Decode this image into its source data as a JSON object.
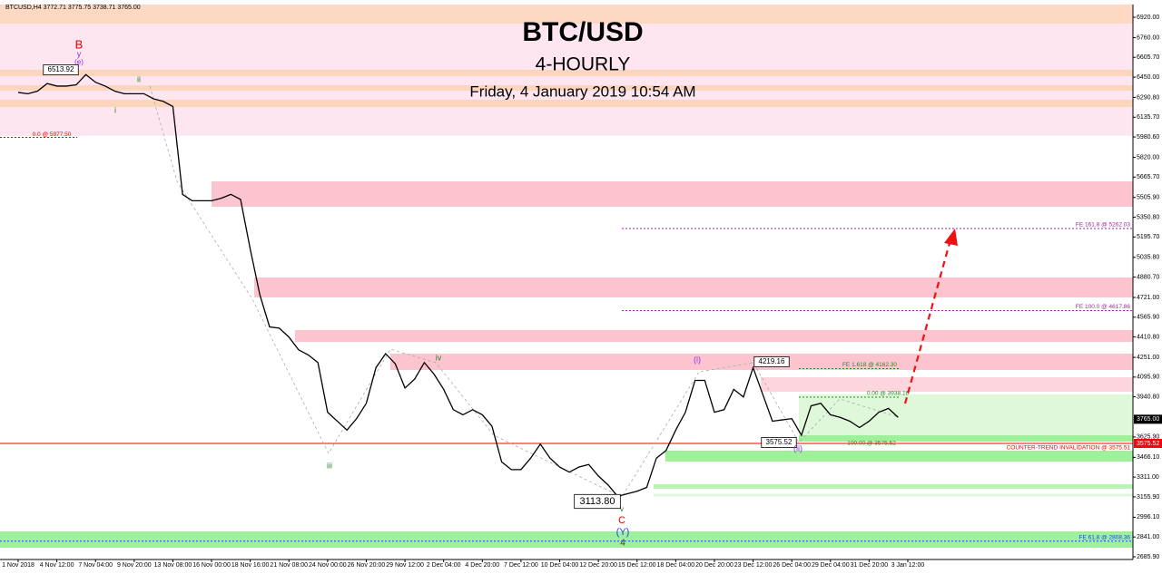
{
  "chart_data": {
    "type": "line",
    "header": "BTCUSD,H4  3772.71 3775.75 3738.71 3765.00",
    "title": "BTC/USD",
    "subtitle": "4-HOURLY",
    "date": "Friday, 4 January 2019 10:54 AM",
    "categories": [
      "1 Nov 2018",
      null,
      null,
      null,
      "4 Nov 12:00",
      null,
      null,
      null,
      "7 Nov 04:00",
      null,
      null,
      null,
      "9 Nov 20:00",
      null,
      null,
      null,
      "13 Nov 08:00",
      null,
      null,
      null,
      "16 Nov 00:00",
      null,
      null,
      null,
      "18 Nov 16:00",
      null,
      null,
      null,
      "21 Nov 08:00",
      null,
      null,
      null,
      "24 Nov 00:00",
      null,
      null,
      null,
      "26 Nov 20:00",
      null,
      null,
      null,
      "29 Nov 12:00",
      null,
      null,
      null,
      "2 Dec 04:00",
      null,
      null,
      null,
      "4 Dec 20:00",
      null,
      null,
      null,
      "7 Dec 12:00",
      null,
      null,
      null,
      "10 Dec 04:00",
      null,
      null,
      null,
      "12 Dec 20:00",
      null,
      null,
      null,
      "15 Dec 12:00",
      null,
      null,
      null,
      "18 Dec 04:00",
      null,
      null,
      null,
      "20 Dec 20:00",
      null,
      null,
      null,
      "23 Dec 12:00",
      null,
      null,
      null,
      "26 Dec 04:00",
      null,
      null,
      null,
      "29 Dec 04:00",
      null,
      null,
      null,
      "31 Dec 20:00",
      null,
      null,
      null,
      "3 Jan 12:00"
    ],
    "series": [
      {
        "color": "#000000",
        "values": [
          6330,
          6320,
          6340,
          6400,
          6380,
          6380,
          6390,
          6470,
          6410,
          6380,
          6340,
          6320,
          6320,
          6320,
          6280,
          6260,
          6220,
          5530,
          5480,
          5480,
          5480,
          5500,
          5530,
          5490,
          5100,
          4740,
          4490,
          4480,
          4410,
          4310,
          4270,
          4210,
          3820,
          3750,
          3680,
          3770,
          3890,
          4170,
          4280,
          4200,
          4010,
          4080,
          4210,
          4120,
          4000,
          3840,
          3800,
          3840,
          3800,
          3710,
          3430,
          3370,
          3370,
          3460,
          3570,
          3460,
          3390,
          3350,
          3390,
          3410,
          3320,
          3250,
          3160,
          3180,
          3200,
          3230,
          3460,
          3520,
          3680,
          3820,
          4070,
          4070,
          3820,
          3840,
          4000,
          3940,
          4170,
          3960,
          3750,
          3760,
          3770,
          3640,
          3870,
          3890,
          3800,
          3780,
          3750,
          3700,
          3750,
          3820,
          3850,
          3780,
          null
        ]
      }
    ],
    "ylim": [
      2643,
      7020
    ],
    "yticks": [
      {
        "value": 6920,
        "label": "6920.00"
      },
      {
        "value": 6760,
        "label": "6760.00"
      },
      {
        "value": 6605.7,
        "label": "6605.70"
      },
      {
        "value": 6450,
        "label": "6450.00"
      },
      {
        "value": 6290.8,
        "label": "6290.80"
      },
      {
        "value": 6135.7,
        "label": "6135.70"
      },
      {
        "value": 5980.6,
        "label": "5980.60"
      },
      {
        "value": 5820,
        "label": "5820.00"
      },
      {
        "value": 5665.7,
        "label": "5665.70"
      },
      {
        "value": 5505.9,
        "label": "5505.90"
      },
      {
        "value": 5350.8,
        "label": "5350.80"
      },
      {
        "value": 5195.7,
        "label": "5195.70"
      },
      {
        "value": 5035.8,
        "label": "5035.80"
      },
      {
        "value": 4880.7,
        "label": "4880.70"
      },
      {
        "value": 4721,
        "label": "4721.00"
      },
      {
        "value": 4565.9,
        "label": "4565.90"
      },
      {
        "value": 4410.8,
        "label": "4410.80"
      },
      {
        "value": 4251,
        "label": "4251.00"
      },
      {
        "value": 4095.9,
        "label": "4095.90"
      },
      {
        "value": 3940.8,
        "label": "3940.80"
      },
      {
        "value": 3625.9,
        "label": "3625.90"
      },
      {
        "value": 3466.1,
        "label": "3466.10"
      },
      {
        "value": 3311,
        "label": "3311.00"
      },
      {
        "value": 3155.9,
        "label": "3155.90"
      },
      {
        "value": 2996.1,
        "label": "2996.10"
      },
      {
        "value": 2841,
        "label": "2841.00"
      },
      {
        "value": 2685.9,
        "label": "2685.90"
      }
    ],
    "last_price": {
      "value": 3765,
      "label": "3765.00"
    },
    "zones": [
      {
        "range": [
          6870,
          7020
        ],
        "color": "#fdd9c4"
      },
      {
        "range": [
          5990,
          6870
        ],
        "color": "#fde6ef"
      },
      {
        "range": [
          6458,
          6508
        ],
        "color": "#fcd5bd"
      },
      {
        "range": [
          6344,
          6386
        ],
        "color": "#fcd5bd"
      },
      {
        "range": [
          6216,
          6273
        ],
        "color": "#fcd5bd"
      },
      {
        "range": [
          5433,
          5632
        ],
        "color": "#fbc4cf"
      },
      {
        "range": [
          4721,
          4878
        ],
        "color": "#fbc4cf"
      },
      {
        "range": [
          4372,
          4465
        ],
        "color": "#fbc4cf"
      },
      {
        "range": [
          4152,
          4280
        ],
        "color": "#fbc4cf"
      },
      {
        "range": [
          3981,
          4095
        ],
        "color": "#fdd6dd"
      },
      {
        "range": [
          3640,
          3960
        ],
        "color": "#dff8da"
      },
      {
        "range": [
          3590,
          3640
        ],
        "color": "#9ef09a"
      },
      {
        "range": [
          3433,
          3519
        ],
        "color": "#9ef09a"
      },
      {
        "range": [
          3220,
          3255
        ],
        "color": "#b8f4b2"
      },
      {
        "range": [
          3160,
          3180
        ],
        "color": "#dff8da"
      },
      {
        "range": [
          2757,
          2885
        ],
        "color": "#9ef09a"
      }
    ],
    "levels": [
      {
        "value": 5977.5,
        "label": "0.0 @ 5977.50",
        "color": "#ff0000"
      },
      {
        "value": 5262.03,
        "label": "FE 161.8 @ 5262.03",
        "color": "#aa22aa"
      },
      {
        "value": 4617.86,
        "label": "FE 100.0 @ 4617.86",
        "color": "#aa22aa"
      },
      {
        "value": 4162.3,
        "label": "FE 1.618 @ 4162.30",
        "color": "#228b22"
      },
      {
        "value": 3938.16,
        "label": "0.00 @ 3938.16",
        "color": "#228b22"
      },
      {
        "value": 3575.52,
        "label": "100.00 @ 3575.52",
        "color": "#228b22",
        "tag": "3575.52"
      },
      {
        "value": 3575.51,
        "label": "COUNTER-TREND INVALIDATION @ 3575.51",
        "color": "#ff0000"
      },
      {
        "value": 2808.36,
        "label": "FE 61.8 @ 2808.36",
        "color": "#1f3fff"
      }
    ],
    "annotations": [
      {
        "text": "B",
        "color": "#e00000"
      },
      {
        "text": "y",
        "color": "#8a2be2"
      },
      {
        "text": "(e)",
        "color": "#8a2be2"
      },
      {
        "text": "6513.92",
        "color": "#000000"
      },
      {
        "text": "i",
        "color": "#2e7d32"
      },
      {
        "text": "ii",
        "color": "#2e7d32"
      },
      {
        "text": "iii",
        "color": "#2e7d32"
      },
      {
        "text": "iv",
        "color": "#2e7d32"
      },
      {
        "text": "v",
        "color": "#2e7d32"
      },
      {
        "text": "C",
        "color": "#e00000"
      },
      {
        "text": "(Y)",
        "color": "#1f3fff"
      },
      {
        "text": "4",
        "color": "#333333"
      },
      {
        "text": "3113.80",
        "color": "#000000"
      },
      {
        "text": "(i)",
        "color": "#8a2be2"
      },
      {
        "text": "4219.16",
        "color": "#000000"
      },
      {
        "text": "3575.52",
        "color": "#000000"
      },
      {
        "text": "(ii)",
        "color": "#8a2be2"
      }
    ]
  }
}
